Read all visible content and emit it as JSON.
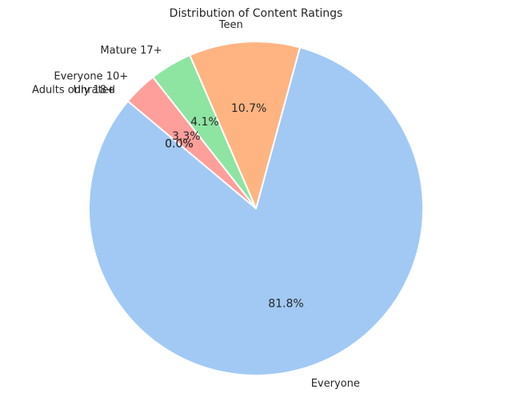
{
  "chart_data": {
    "type": "pie",
    "title": "Distribution of Content Ratings",
    "start_angle_deg": 140,
    "direction": "counterclockwise",
    "slices": [
      {
        "label": "Everyone",
        "value": 81.8,
        "pct_label": "81.8%",
        "color": "#a1c9f4"
      },
      {
        "label": "Teen",
        "value": 10.7,
        "pct_label": "10.7%",
        "color": "#ffb482"
      },
      {
        "label": "Mature 17+",
        "value": 4.1,
        "pct_label": "4.1%",
        "color": "#8de5a1"
      },
      {
        "label": "Everyone 10+",
        "value": 3.3,
        "pct_label": "3.3%",
        "color": "#ff9f9b"
      },
      {
        "label": "Adults only 18+",
        "value": 0.0,
        "pct_label": "0.0%",
        "color": "#d0bbff"
      },
      {
        "label": "Unrated",
        "value": 0.0,
        "pct_label": "0.0%",
        "color": "#debb9b"
      }
    ]
  }
}
